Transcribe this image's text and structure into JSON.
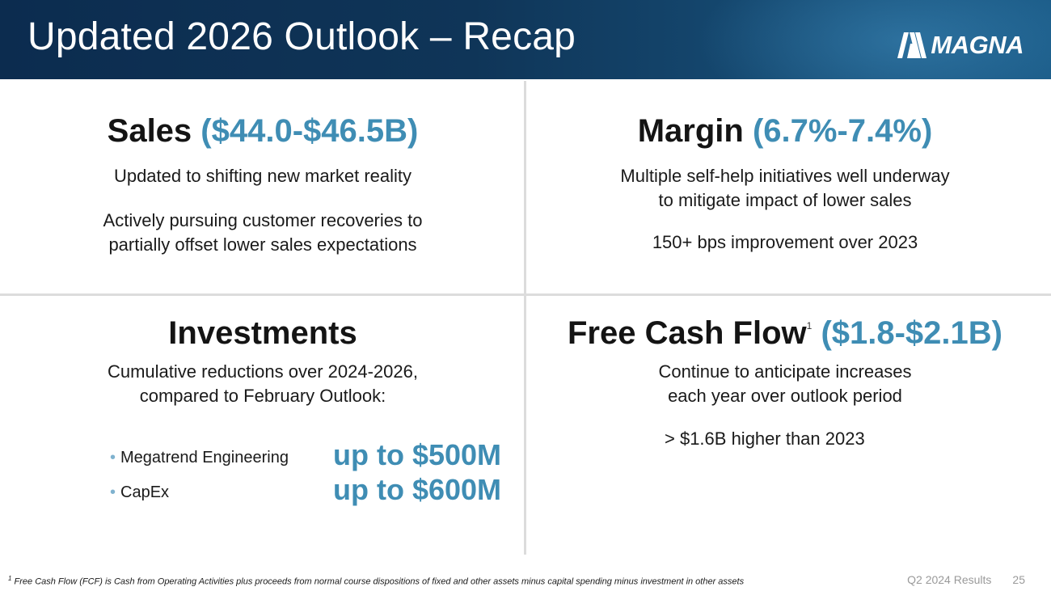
{
  "header": {
    "title": "Updated 2026 Outlook – Recap",
    "logo_text": "MAGNA"
  },
  "sales": {
    "heading": "Sales",
    "range": "($44.0-$46.5B)",
    "lines": [
      "Updated to shifting new market reality",
      "Actively pursuing customer recoveries to",
      "partially offset lower sales expectations"
    ]
  },
  "margin": {
    "heading": "Margin",
    "range": "(6.7%-7.4%)",
    "lines": [
      "Multiple self-help initiatives well underway",
      "to mitigate impact of lower sales",
      "150+ bps improvement over 2023"
    ]
  },
  "investments": {
    "heading": "Investments",
    "lines": [
      "Cumulative reductions over 2024-2026,",
      "compared to February Outlook:"
    ],
    "items": [
      {
        "label": "Megatrend Engineering",
        "value": "up to $500M"
      },
      {
        "label": "CapEx",
        "value": "up to $600M"
      }
    ]
  },
  "fcf": {
    "heading": "Free Cash Flow",
    "footnote_marker": "1",
    "range": "($1.8-$2.1B)",
    "lines": [
      "Continue to anticipate increases",
      "each year over outlook period",
      "> $1.6B higher than 2023"
    ]
  },
  "footer": {
    "footnote_marker": "1",
    "footnote": "Free Cash Flow (FCF) is Cash from Operating Activities plus proceeds from normal course dispositions of fixed and other assets minus capital spending minus investment in other assets",
    "report": "Q2 2024 Results",
    "page": "25"
  },
  "colors": {
    "accent": "#3f8db4",
    "header_dark": "#0c2c4f",
    "header_light": "#1a5a86"
  }
}
